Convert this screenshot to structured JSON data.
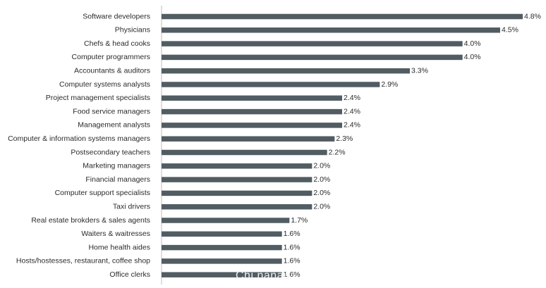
{
  "chart_data": {
    "type": "bar",
    "orientation": "horizontal",
    "categories": [
      "Software developers",
      "Physicians",
      "Chefs & head cooks",
      "Computer programmers",
      "Accountants & auditors",
      "Computer systems analysts",
      "Project management specialists",
      "Food service managers",
      "Management analysts",
      "Computer & information systems managers",
      "Postsecondary teachers",
      "Marketing managers",
      "Financial managers",
      "Computer support specialists",
      "Taxi drivers",
      "Real estate brokders & sales agents",
      "Waiters & waitresses",
      "Home health aides",
      "Hosts/hostesses, restaurant, coffee shop",
      "Office clerks"
    ],
    "values": [
      4.8,
      4.5,
      4.0,
      4.0,
      3.3,
      2.9,
      2.4,
      2.4,
      2.4,
      2.3,
      2.2,
      2.0,
      2.0,
      2.0,
      2.0,
      1.7,
      1.6,
      1.6,
      1.6,
      1.6
    ],
    "value_labels": [
      "4.8%",
      "4.5%",
      "4.0%",
      "4.0%",
      "3.3%",
      "2.9%",
      "2.4%",
      "2.4%",
      "2.4%",
      "2.3%",
      "2.2%",
      "2.0%",
      "2.0%",
      "2.0%",
      "2.0%",
      "1.7%",
      "1.6%",
      "1.6%",
      "1.6%",
      "1.6%"
    ],
    "xlim": [
      0,
      4.8
    ],
    "grid": false,
    "bar_color": "#515d62",
    "axis_color": "#bdbdbd"
  },
  "watermark": "Chi nanau"
}
